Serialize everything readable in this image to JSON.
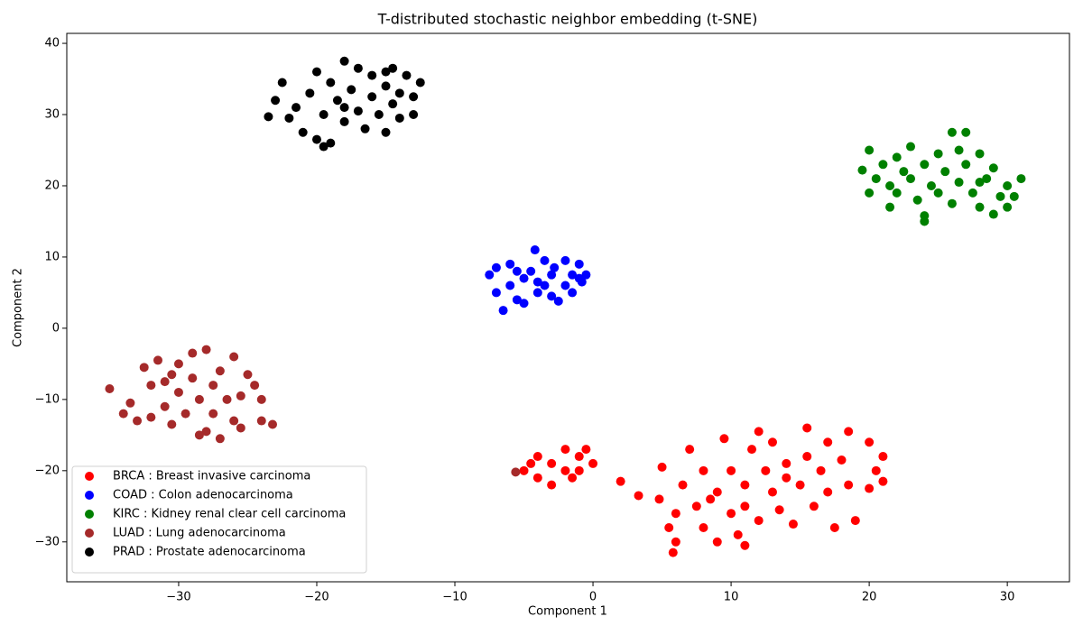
{
  "chart_data": {
    "type": "scatter",
    "title": "T-distributed stochastic neighbor embedding (t-SNE)",
    "xlabel": "Component 1",
    "ylabel": "Component 2",
    "xlim": [
      -38.1,
      34.5
    ],
    "ylim": [
      -35.6,
      41.4
    ],
    "xticks": [
      {
        "value": -30,
        "label": "−30"
      },
      {
        "value": -20,
        "label": "−20"
      },
      {
        "value": -10,
        "label": "−10"
      },
      0,
      10,
      20,
      30
    ],
    "yticks": [
      {
        "value": -30,
        "label": "−30"
      },
      {
        "value": -20,
        "label": "−20"
      },
      {
        "value": -10,
        "label": "−10"
      },
      0,
      10,
      20,
      30,
      40
    ],
    "legend": "lower left",
    "series": [
      {
        "name": "BRCA : Breast invasive carcinoma",
        "color": "#ff0000",
        "x": [
          -5,
          -4,
          -3,
          -2,
          -1,
          0,
          -4,
          -2,
          -1,
          -3,
          -0.5,
          -4.5,
          -1.5,
          2,
          3.3,
          4.8,
          5,
          5.5,
          6,
          6,
          6.5,
          7,
          7.5,
          8,
          8,
          9,
          9,
          9.5,
          10,
          10,
          10.5,
          11,
          11,
          11.5,
          12,
          12,
          12.5,
          13,
          13,
          13.5,
          14,
          14.5,
          15,
          15.5,
          15.5,
          16,
          16.5,
          17,
          17,
          17.5,
          18,
          18.5,
          18.5,
          19,
          20,
          20,
          20.5,
          21,
          21,
          5.8,
          8.5,
          11,
          14
        ],
        "y": [
          -20,
          -18,
          -19,
          -20,
          -18,
          -19,
          -21,
          -17,
          -20,
          -22,
          -17,
          -19,
          -21,
          -21.5,
          -23.5,
          -24,
          -19.5,
          -28,
          -30,
          -26,
          -22,
          -17,
          -25,
          -20,
          -28,
          -23,
          -30,
          -15.5,
          -26,
          -20,
          -29,
          -22,
          -25,
          -17,
          -14.5,
          -27,
          -20,
          -23,
          -16,
          -25.5,
          -19,
          -27.5,
          -22,
          -14,
          -18,
          -25,
          -20,
          -16,
          -23,
          -28,
          -18.5,
          -22,
          -14.5,
          -27,
          -16,
          -22.5,
          -20,
          -18,
          -21.5,
          -31.5,
          -24,
          -30.5,
          -21
        ]
      },
      {
        "name": "COAD : Colon adenocarcinoma",
        "color": "#0000ff",
        "x": [
          -7.5,
          -7,
          -7,
          -6.5,
          -6,
          -6,
          -5.5,
          -5,
          -5,
          -4.5,
          -4.2,
          -4,
          -4,
          -3.5,
          -3,
          -3,
          -2.8,
          -2.5,
          -2,
          -2,
          -1.5,
          -1.5,
          -1,
          -1,
          -0.8,
          -0.5,
          -3.5,
          -5.5
        ],
        "y": [
          7.5,
          5,
          8.5,
          2.5,
          6,
          9,
          4,
          7,
          3.5,
          8,
          11,
          5,
          6.5,
          9.5,
          4.5,
          7.5,
          8.5,
          3.8,
          6,
          9.5,
          7.5,
          5,
          9,
          7,
          6.5,
          7.5,
          6,
          8
        ]
      },
      {
        "name": "KIRC : Kidney renal clear cell carcinoma",
        "color": "#008000",
        "x": [
          19.5,
          20,
          20,
          20.5,
          21,
          21.5,
          21.5,
          22,
          22,
          22.5,
          23,
          23,
          23.5,
          24,
          24,
          24,
          24.5,
          25,
          25,
          25.5,
          26,
          26,
          26.5,
          27,
          27,
          27.5,
          28,
          28,
          28.5,
          29,
          29,
          29.5,
          30,
          30.5,
          31,
          30,
          28,
          26.5
        ],
        "y": [
          22.2,
          25,
          19,
          21,
          23,
          17,
          20,
          24,
          19,
          22,
          25.5,
          21,
          18,
          15,
          15.8,
          23,
          20,
          24.5,
          19,
          22,
          27.5,
          17.5,
          20.5,
          27.5,
          23,
          19,
          24.5,
          17,
          21,
          16,
          22.5,
          18.5,
          20,
          18.5,
          21,
          17,
          20.5,
          25
        ]
      },
      {
        "name": "LUAD : Lung adenocarcinoma",
        "color": "#a52a2a",
        "x": [
          -35,
          -34,
          -33.5,
          -33,
          -32.5,
          -32,
          -32,
          -31.5,
          -31,
          -31,
          -30.5,
          -30,
          -30,
          -29.5,
          -29,
          -29,
          -28.5,
          -28,
          -28,
          -27.5,
          -27.5,
          -27,
          -27,
          -26.5,
          -26,
          -26,
          -25.5,
          -25.5,
          -25,
          -24.5,
          -24,
          -24,
          -23.2,
          -28.5,
          -30.5,
          -5.6
        ],
        "y": [
          -8.5,
          -12,
          -10.5,
          -13,
          -5.5,
          -8,
          -12.5,
          -4.5,
          -11,
          -7.5,
          -13.5,
          -9,
          -5,
          -12,
          -3.5,
          -7,
          -10,
          -14.5,
          -3,
          -8,
          -12,
          -15.5,
          -6,
          -10,
          -13,
          -4,
          -9.5,
          -14,
          -6.5,
          -8,
          -13,
          -10,
          -13.5,
          -15,
          -6.5,
          -20.2
        ]
      },
      {
        "name": "PRAD : Prostate adenocarcinoma",
        "color": "#000000",
        "x": [
          -23.5,
          -23,
          -22.5,
          -22,
          -21.5,
          -21,
          -20.5,
          -20,
          -20,
          -19.5,
          -19,
          -19,
          -18.5,
          -18,
          -18,
          -17.5,
          -17,
          -17,
          -16.5,
          -16,
          -16,
          -15.5,
          -15,
          -15,
          -14.5,
          -14.5,
          -14,
          -14,
          -13.5,
          -13,
          -13,
          -12.5,
          -15,
          -19.5,
          -18
        ],
        "y": [
          29.7,
          32,
          34.5,
          29.5,
          31,
          27.5,
          33,
          26.5,
          36,
          30,
          34.5,
          26,
          32,
          29,
          37.5,
          33.5,
          30.5,
          36.5,
          28,
          32.5,
          35.5,
          30,
          34,
          27.5,
          36.5,
          31.5,
          33,
          29.5,
          35.5,
          32.5,
          30,
          34.5,
          36,
          25.5,
          31
        ]
      }
    ]
  }
}
